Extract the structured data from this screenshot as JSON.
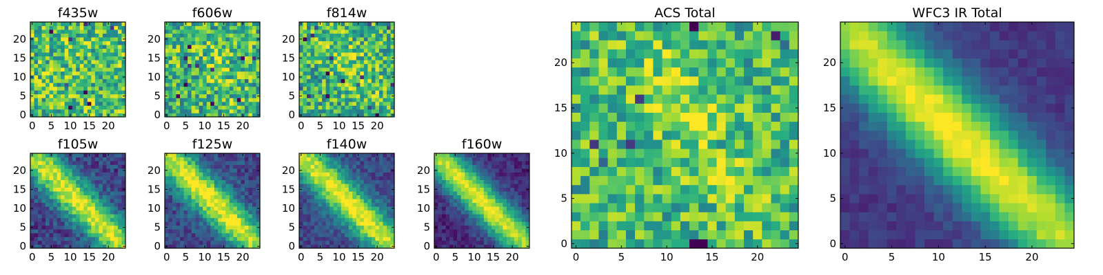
{
  "colormap": {
    "name": "viridis",
    "stops": [
      "#440154",
      "#472d7b",
      "#3b528b",
      "#2c728e",
      "#21918c",
      "#28ae80",
      "#5ec962",
      "#addc30",
      "#fde725"
    ]
  },
  "chart_data": [
    {
      "type": "heatmap",
      "title": "f435w",
      "grid": [
        25,
        25
      ],
      "xticks": [
        "0",
        "5",
        "10",
        "15",
        "20"
      ],
      "yticks": [
        "0",
        "5",
        "10",
        "15",
        "20"
      ],
      "xlim": [
        -0.5,
        24.5
      ],
      "ylim": [
        -0.5,
        24.5
      ],
      "pattern": "noise",
      "level": 0.7,
      "amp": 0.0,
      "noise": 0.5,
      "seed": 11
    },
    {
      "type": "heatmap",
      "title": "f606w",
      "grid": [
        25,
        25
      ],
      "xticks": [
        "0",
        "5",
        "10",
        "15",
        "20"
      ],
      "yticks": [
        "0",
        "5",
        "10",
        "15",
        "20"
      ],
      "xlim": [
        -0.5,
        24.5
      ],
      "ylim": [
        -0.5,
        24.5
      ],
      "pattern": "noise",
      "level": 0.66,
      "amp": 0.1,
      "noise": 0.5,
      "seed": 23
    },
    {
      "type": "heatmap",
      "title": "f814w",
      "grid": [
        25,
        25
      ],
      "xticks": [
        "0",
        "5",
        "10",
        "15",
        "20"
      ],
      "yticks": [
        "0",
        "5",
        "10",
        "15",
        "20"
      ],
      "xlim": [
        -0.5,
        24.5
      ],
      "ylim": [
        -0.5,
        24.5
      ],
      "pattern": "noise",
      "level": 0.64,
      "amp": 0.18,
      "noise": 0.48,
      "seed": 37
    },
    {
      "type": "heatmap",
      "title": "f105w",
      "grid": [
        25,
        25
      ],
      "xticks": [
        "0",
        "5",
        "10",
        "15",
        "20"
      ],
      "yticks": [
        "0",
        "5",
        "10",
        "15",
        "20"
      ],
      "xlim": [
        -0.5,
        24.5
      ],
      "ylim": [
        -0.5,
        24.5
      ],
      "pattern": "diagonal",
      "level": 0.2,
      "amp": 0.78,
      "noise": 0.3,
      "seed": 41
    },
    {
      "type": "heatmap",
      "title": "f125w",
      "grid": [
        25,
        25
      ],
      "xticks": [
        "0",
        "5",
        "10",
        "15",
        "20"
      ],
      "yticks": [
        "0",
        "5",
        "10",
        "15",
        "20"
      ],
      "xlim": [
        -0.5,
        24.5
      ],
      "ylim": [
        -0.5,
        24.5
      ],
      "pattern": "diagonal",
      "level": 0.22,
      "amp": 0.78,
      "noise": 0.28,
      "seed": 53
    },
    {
      "type": "heatmap",
      "title": "f140w",
      "grid": [
        25,
        25
      ],
      "xticks": [
        "0",
        "5",
        "10",
        "15",
        "20"
      ],
      "yticks": [
        "0",
        "5",
        "10",
        "15",
        "20"
      ],
      "xlim": [
        -0.5,
        24.5
      ],
      "ylim": [
        -0.5,
        24.5
      ],
      "pattern": "diagonal",
      "level": 0.22,
      "amp": 0.78,
      "noise": 0.24,
      "seed": 67
    },
    {
      "type": "heatmap",
      "title": "f160w",
      "grid": [
        25,
        25
      ],
      "xticks": [
        "0",
        "5",
        "10",
        "15",
        "20"
      ],
      "yticks": [
        "0",
        "5",
        "10",
        "15",
        "20"
      ],
      "xlim": [
        -0.5,
        24.5
      ],
      "ylim": [
        -0.5,
        24.5
      ],
      "pattern": "diagonal",
      "level": 0.12,
      "amp": 0.86,
      "noise": 0.2,
      "seed": 79
    },
    {
      "type": "heatmap",
      "title": "ACS Total",
      "grid": [
        25,
        25
      ],
      "xticks": [
        "0",
        "5",
        "10",
        "15",
        "20"
      ],
      "yticks": [
        "0",
        "5",
        "10",
        "15",
        "20"
      ],
      "xlim": [
        -0.5,
        24.5
      ],
      "ylim": [
        -0.5,
        24.5
      ],
      "pattern": "noise",
      "level": 0.66,
      "amp": 0.16,
      "noise": 0.42,
      "seed": 97
    },
    {
      "type": "heatmap",
      "title": "WFC3 IR Total",
      "grid": [
        25,
        25
      ],
      "xticks": [
        "0",
        "5",
        "10",
        "15",
        "20"
      ],
      "yticks": [
        "0",
        "5",
        "10",
        "15",
        "20"
      ],
      "xlim": [
        -0.5,
        24.5
      ],
      "ylim": [
        -0.5,
        24.5
      ],
      "pattern": "diagonal",
      "level": 0.16,
      "amp": 0.84,
      "noise": 0.12,
      "seed": 113
    }
  ]
}
